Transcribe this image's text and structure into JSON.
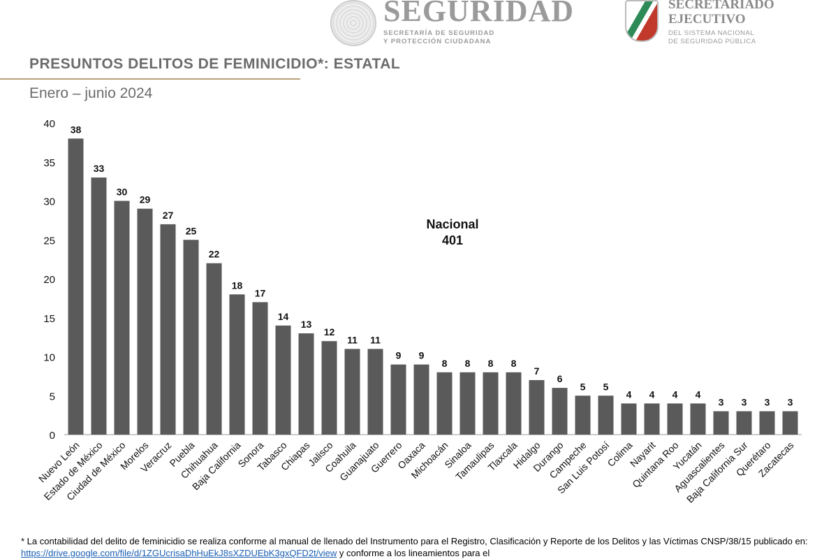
{
  "header": {
    "logo1_main": "SEGURIDAD",
    "logo1_sub1": "SECRETARÍA DE SEGURIDAD",
    "logo1_sub2": "Y PROTECCIÓN CIUDADANA",
    "logo2_main1": "SECRETARIADO",
    "logo2_main2": "EJECUTIVO",
    "logo2_sub1": "DEL SISTEMA NACIONAL",
    "logo2_sub2": "DE SEGURIDAD PÚBLICA"
  },
  "title": "PRESUNTOS DELITOS DE FEMINICIDIO*: ESTATAL",
  "subtitle": "Enero – junio 2024",
  "chart_data": {
    "type": "bar",
    "ylim": [
      0,
      40
    ],
    "yticks": [
      0,
      5,
      10,
      15,
      20,
      25,
      30,
      35,
      40
    ],
    "grid": false,
    "bar_color": "#5a5a5a",
    "annotation": {
      "line1": "Nacional",
      "line2": "401"
    },
    "categories": [
      "Nuevo León",
      "Estado de México",
      "Ciudad de México",
      "Morelos",
      "Veracruz",
      "Puebla",
      "Chihuahua",
      "Baja California",
      "Sonora",
      "Tabasco",
      "Chiapas",
      "Jalisco",
      "Coahuila",
      "Guanajuato",
      "Guerrero",
      "Oaxaca",
      "Michoacán",
      "Sinaloa",
      "Tamaulipas",
      "Tlaxcala",
      "Hidalgo",
      "Durango",
      "Campeche",
      "San Luis Potosí",
      "Colima",
      "Nayarit",
      "Quintana Roo",
      "Yucatán",
      "Aguascalientes",
      "Baja California Sur",
      "Querétaro",
      "Zacatecas"
    ],
    "values": [
      38,
      33,
      30,
      29,
      27,
      25,
      22,
      18,
      17,
      14,
      13,
      12,
      11,
      11,
      9,
      9,
      8,
      8,
      8,
      8,
      7,
      6,
      5,
      5,
      4,
      4,
      4,
      4,
      3,
      3,
      3,
      3
    ]
  },
  "footnote": {
    "text1": "* La contabilidad del delito de feminicidio se realiza conforme al manual de llenado del Instrumento para el Registro, Clasificación y Reporte de los Delitos y las Víctimas CNSP/38/15 publicado en: ",
    "link": "https://drive.google.com/file/d/1ZGUcrisaDhHuEkJ8sXZDUEbK3gxQFD2t/view",
    "text2": " y conforme a los lineamientos para el"
  }
}
